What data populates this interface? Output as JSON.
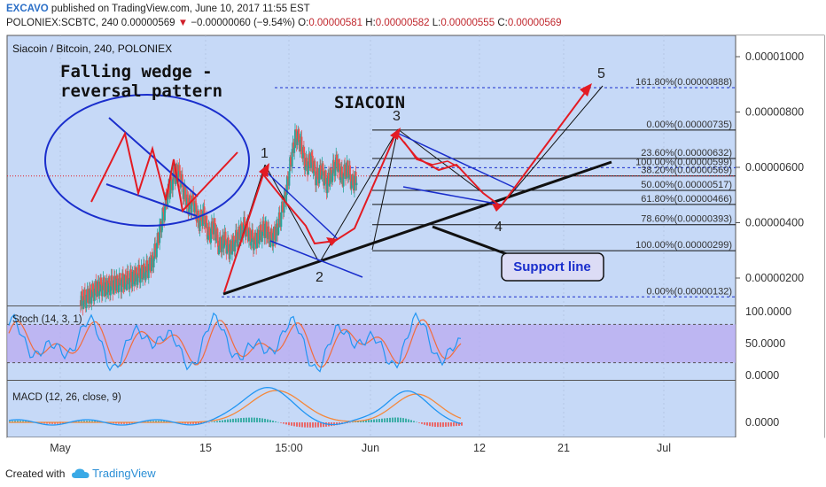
{
  "header": {
    "author": "EXCAVO",
    "published": "published on TradingView.com, June 10, 2017 11:55 EST",
    "symbol": "POLONIEX:SCBTC, 240",
    "last": "0.00000569",
    "change": "−0.00000060 (−9.54%)",
    "o_label": "O:",
    "o": "0.00000581",
    "h_label": "H:",
    "h": "0.00000582",
    "l_label": "L:",
    "l": "0.00000555",
    "c_label": "C:",
    "c": "0.00000569"
  },
  "chart_title": "Siacoin / Bitcoin, 240, POLONIEX",
  "annotations": {
    "wedge_title_1": "Falling wedge -",
    "wedge_title_2": "reversal pattern",
    "coin": "SIACOIN",
    "support": "Support line",
    "wave_labels": [
      "1",
      "2",
      "3",
      "4",
      "5"
    ]
  },
  "colors": {
    "blue": "#1a2ecc",
    "red": "#e31b23",
    "bullish": "#26a69a",
    "bearish": "#ef5350",
    "stoch_band": "#b9a9f0",
    "stoch_k": "#2196f3",
    "stoch_d": "#f26c3c",
    "macd_line": "#2196f3",
    "signal_line": "#f5883a"
  },
  "footer": {
    "created": "Created with",
    "brand": "TradingView",
    "icon": "tradingview-cloud-icon"
  },
  "chart_data": {
    "type": "candlestick",
    "price_axis": [
      "0.00001000",
      "0.00000800",
      "0.00000600",
      "0.00000400",
      "0.00000200"
    ],
    "time_axis": [
      "May",
      "15",
      "15:00",
      "Jun",
      "12",
      "21",
      "Jul"
    ],
    "fib_top": [
      {
        "label": "161.80%(0.00000888)",
        "value": 8.88e-06
      },
      {
        "label": "0.00%(0.00000735)",
        "value": 7.35e-06
      },
      {
        "label": "23.60%(0.00000632)",
        "value": 6.32e-06
      },
      {
        "label": "100.00%(0.00000599)",
        "value": 5.99e-06
      },
      {
        "label": "38.20%(0.00000569)",
        "value": 5.69e-06
      },
      {
        "label": "50.00%(0.00000517)",
        "value": 5.17e-06
      },
      {
        "label": "61.80%(0.00000466)",
        "value": 4.66e-06
      },
      {
        "label": "78.60%(0.00000393)",
        "value": 3.93e-06
      },
      {
        "label": "100.00%(0.00000299)",
        "value": 2.99e-06
      },
      {
        "label": "0.00%(0.00000132)",
        "value": 1.32e-06
      }
    ],
    "price_path": [
      [
        0.28,
        1.2e-06
      ],
      [
        0.3,
        1.25e-06
      ],
      [
        0.32,
        1.4e-06
      ],
      [
        0.34,
        1.6e-06
      ],
      [
        0.36,
        1.7e-06
      ],
      [
        0.38,
        1.65e-06
      ],
      [
        0.4,
        1.75e-06
      ],
      [
        0.42,
        1.8e-06
      ],
      [
        0.44,
        1.85e-06
      ],
      [
        0.46,
        1.9e-06
      ],
      [
        0.48,
        2e-06
      ],
      [
        0.5,
        2.1e-06
      ],
      [
        0.52,
        2.2e-06
      ],
      [
        0.54,
        2.3e-06
      ],
      [
        0.56,
        2.6e-06
      ],
      [
        0.58,
        3.3e-06
      ],
      [
        0.6,
        4.2e-06
      ],
      [
        0.62,
        5e-06
      ],
      [
        0.64,
        5.6e-06
      ],
      [
        0.66,
        5.9e-06
      ],
      [
        0.68,
        5.2e-06
      ],
      [
        0.7,
        4.6e-06
      ],
      [
        0.72,
        4.8e-06
      ],
      [
        0.74,
        4e-06
      ],
      [
        0.76,
        4.3e-06
      ],
      [
        0.78,
        3.5e-06
      ],
      [
        0.8,
        3.9e-06
      ],
      [
        0.82,
        3.1e-06
      ],
      [
        0.84,
        3.4e-06
      ],
      [
        0.86,
        3e-06
      ],
      [
        0.88,
        3.3e-06
      ],
      [
        0.9,
        3.6e-06
      ],
      [
        0.92,
        3.9e-06
      ],
      [
        0.94,
        3.5e-06
      ],
      [
        0.96,
        3.3e-06
      ],
      [
        0.98,
        3.6e-06
      ],
      [
        1.0,
        3.8e-06
      ],
      [
        1.02,
        3.4e-06
      ],
      [
        1.04,
        3.6e-06
      ],
      [
        1.06,
        4.2e-06
      ],
      [
        1.08,
        5e-06
      ],
      [
        1.1,
        6.2e-06
      ],
      [
        1.12,
        7.2e-06
      ],
      [
        1.14,
        6.8e-06
      ],
      [
        1.16,
        6e-06
      ],
      [
        1.18,
        6.3e-06
      ],
      [
        1.2,
        5.6e-06
      ],
      [
        1.22,
        5.9e-06
      ],
      [
        1.24,
        5.4e-06
      ],
      [
        1.26,
        5.8e-06
      ],
      [
        1.28,
        6.2e-06
      ],
      [
        1.3,
        5.6e-06
      ],
      [
        1.32,
        6e-06
      ],
      [
        1.34,
        5.4e-06
      ],
      [
        1.36,
        5.69e-06
      ]
    ],
    "stoch": {
      "name": "Stoch (14, 3, 1)",
      "axis": [
        "100.0000",
        "50.0000",
        "0.0000"
      ],
      "upper": 80,
      "lower": 20
    },
    "macd": {
      "name": "MACD (12, 26, close, 9)",
      "axis": [
        "0.0000"
      ]
    }
  }
}
